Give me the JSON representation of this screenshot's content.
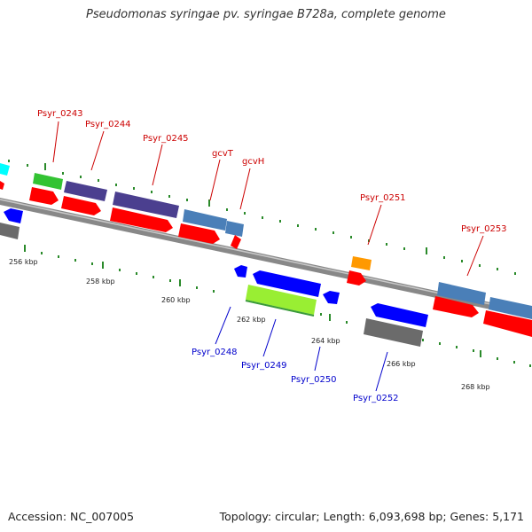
{
  "title": "Pseudomonas syringae pv. syringae B728a, complete genome",
  "footer": {
    "accession": "Accession: NC_007005",
    "summary": "Topology: circular; Length: 6,093,698 bp; Genes: 5,171"
  },
  "colors": {
    "backbone": "#8a8a8a",
    "tick": "#2a8a2a",
    "forward_label": "#cc0000",
    "reverse_label": "#0000cc",
    "cds_forward": "#ff0000",
    "cds_reverse": "#0000ff",
    "cog_purple": "#4b3f8f",
    "cog_steelblue": "#4a7fb8",
    "cog_green": "#33c333",
    "cog_orange": "#ff9900",
    "cog_lime": "#99ee33",
    "cog_gray": "#6b6b6b",
    "cog_cyan": "#00ffff"
  },
  "scale_labels": [
    "256 kbp",
    "258 kbp",
    "260 kbp",
    "262 kbp",
    "264 kbp",
    "266 kbp",
    "268 kbp"
  ],
  "forward_gene_labels": [
    "Psyr_0243",
    "Psyr_0244",
    "Psyr_0245",
    "gcvT",
    "gcvH",
    "Psyr_0251",
    "Psyr_0253"
  ],
  "reverse_gene_labels": [
    "Psyr_0248",
    "Psyr_0249",
    "Psyr_0250",
    "Psyr_0252"
  ]
}
